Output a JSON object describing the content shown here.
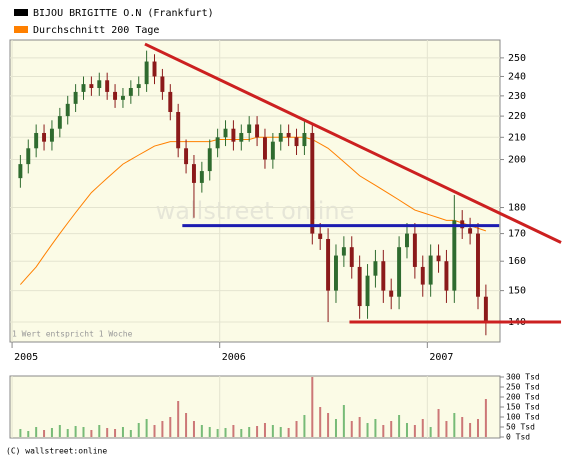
{
  "chart_data": [
    {
      "type": "candlestick",
      "series": [
        {
          "name": "BIJOU BRIGITTE O.N (Frankfurt)",
          "color": "#000000",
          "type": "candlestick",
          "open": [
            192,
            198,
            205,
            212,
            208,
            214,
            220,
            226,
            232,
            236,
            234,
            238,
            232,
            228,
            230,
            234,
            236,
            248,
            240,
            232,
            222,
            205,
            198,
            190,
            195,
            205,
            210,
            214,
            208,
            212,
            216,
            210,
            200,
            208,
            212,
            210,
            206,
            212,
            170,
            168,
            150,
            162,
            165,
            158,
            145,
            155,
            160,
            150,
            148,
            165,
            170,
            158,
            152,
            162,
            160,
            150,
            175,
            172,
            170,
            148
          ],
          "high": [
            202,
            209,
            216,
            216,
            218,
            224,
            230,
            236,
            240,
            240,
            242,
            242,
            236,
            234,
            238,
            240,
            254,
            252,
            244,
            236,
            226,
            209,
            202,
            199,
            209,
            214,
            218,
            218,
            216,
            220,
            220,
            214,
            212,
            216,
            216,
            214,
            218,
            216,
            174,
            172,
            166,
            169,
            169,
            162,
            159,
            164,
            164,
            154,
            169,
            174,
            174,
            162,
            166,
            166,
            164,
            185,
            179,
            176,
            174,
            152
          ],
          "low": [
            188,
            194,
            201,
            204,
            204,
            210,
            216,
            222,
            228,
            230,
            230,
            228,
            224,
            224,
            226,
            230,
            232,
            236,
            228,
            218,
            201,
            194,
            176,
            186,
            191,
            201,
            206,
            204,
            204,
            208,
            206,
            196,
            196,
            204,
            206,
            202,
            202,
            166,
            164,
            140,
            146,
            158,
            154,
            141,
            141,
            151,
            146,
            144,
            144,
            161,
            154,
            148,
            148,
            156,
            146,
            146,
            168,
            166,
            144,
            136
          ],
          "close": [
            198,
            205,
            212,
            208,
            214,
            220,
            226,
            232,
            236,
            234,
            238,
            232,
            228,
            230,
            234,
            236,
            248,
            240,
            232,
            222,
            205,
            198,
            190,
            195,
            205,
            210,
            214,
            208,
            212,
            216,
            210,
            200,
            208,
            212,
            210,
            206,
            212,
            170,
            168,
            150,
            162,
            165,
            158,
            145,
            155,
            160,
            150,
            148,
            165,
            170,
            158,
            152,
            162,
            160,
            150,
            175,
            172,
            170,
            148,
            140
          ]
        },
        {
          "name": "Durchschnitt 200 Tage",
          "color": "#ff8000",
          "type": "line",
          "values": [
            152,
            155,
            158,
            162,
            166,
            170,
            174,
            178,
            182,
            186,
            189,
            192,
            195,
            198,
            200,
            202,
            204,
            206,
            207,
            208,
            208,
            208,
            208,
            208,
            208,
            209,
            209,
            209,
            209,
            209,
            210,
            210,
            210,
            210,
            210,
            210,
            210,
            209,
            207,
            205,
            202,
            199,
            196,
            193,
            191,
            189,
            187,
            185,
            183,
            181,
            179,
            178,
            177,
            176,
            175,
            175,
            174,
            173,
            172,
            171
          ]
        }
      ],
      "x": [
        2005.04,
        2005.078,
        2005.116,
        2005.154,
        2005.192,
        2005.23,
        2005.268,
        2005.306,
        2005.344,
        2005.382,
        2005.42,
        2005.458,
        2005.496,
        2005.534,
        2005.572,
        2005.61,
        2005.648,
        2005.686,
        2005.724,
        2005.762,
        2005.8,
        2005.838,
        2005.876,
        2005.914,
        2005.952,
        2005.99,
        2006.028,
        2006.066,
        2006.104,
        2006.142,
        2006.18,
        2006.218,
        2006.256,
        2006.294,
        2006.332,
        2006.37,
        2006.408,
        2006.446,
        2006.484,
        2006.522,
        2006.56,
        2006.598,
        2006.636,
        2006.674,
        2006.712,
        2006.75,
        2006.788,
        2006.826,
        2006.864,
        2006.902,
        2006.94,
        2006.978,
        2007.016,
        2007.054,
        2007.092,
        2007.13,
        2007.168,
        2007.206,
        2007.244,
        2007.282
      ],
      "up_color": "#2f6b2f",
      "down_color": "#8b1a1a",
      "xlim": [
        2004.99,
        2007.35
      ],
      "xticks": [
        2005,
        2006,
        2007
      ],
      "ylim": [
        134,
        260
      ],
      "yticks": [
        140,
        150,
        160,
        170,
        180,
        200,
        210,
        220,
        230,
        240,
        250
      ],
      "log_scale": true,
      "grid": true,
      "trendlines": [
        {
          "color": "#cc2020",
          "x": [
            2005.64,
            2007.644
          ],
          "values": [
            257.7,
            166.7
          ]
        },
        {
          "color": "#1c1cb0",
          "x": [
            2005.82,
            2007.346
          ],
          "values": [
            173,
            173
          ]
        },
        {
          "color": "#cc2020",
          "x": [
            2006.625,
            2007.644
          ],
          "values": [
            140,
            140
          ]
        }
      ],
      "annotation": "1 Wert entspricht 1 Woche",
      "watermark": "wallstreet online"
    },
    {
      "type": "bar",
      "values": [
        40,
        30,
        50,
        35,
        45,
        60,
        40,
        55,
        50,
        35,
        60,
        45,
        40,
        50,
        35,
        70,
        90,
        60,
        80,
        100,
        180,
        120,
        80,
        60,
        50,
        40,
        45,
        60,
        40,
        50,
        55,
        70,
        60,
        50,
        45,
        80,
        110,
        300,
        150,
        120,
        90,
        160,
        80,
        100,
        70,
        90,
        60,
        80,
        110,
        70,
        60,
        90,
        50,
        140,
        80,
        120,
        100,
        70,
        90,
        190
      ],
      "up_color": "#77bb77",
      "down_color": "#cc7777",
      "ylim": [
        0,
        300
      ],
      "yticks": [
        {
          "value": 0,
          "label": "0 Tsd"
        },
        {
          "value": 50,
          "label": "50 Tsd"
        },
        {
          "value": 100,
          "label": "100 Tsd"
        },
        {
          "value": 150,
          "label": "150 Tsd"
        },
        {
          "value": 200,
          "label": "200 Tsd"
        },
        {
          "value": 250,
          "label": "250 Tsd"
        },
        {
          "value": 300,
          "label": "300 Tsd"
        }
      ],
      "footer": "(C) wallstreet:online"
    }
  ]
}
